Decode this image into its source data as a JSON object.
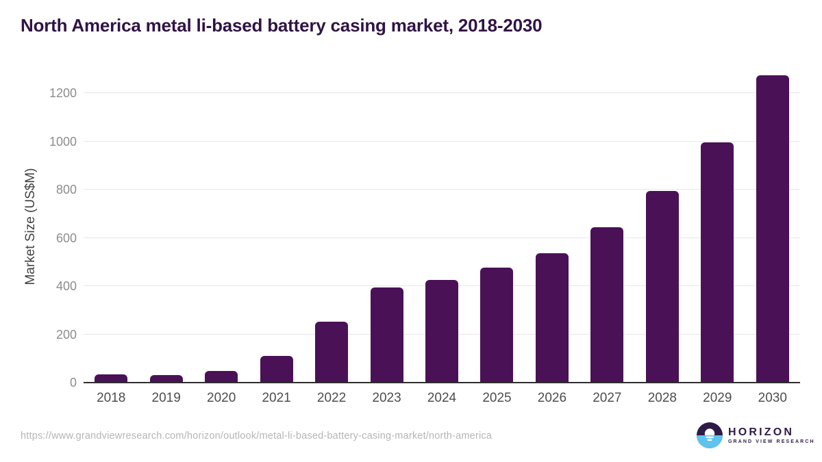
{
  "header": {
    "title": "North America metal li-based battery casing market, 2018-2030"
  },
  "chart_data": {
    "type": "bar",
    "title": "North America metal li-based battery casing market, 2018-2030",
    "categories": [
      "2018",
      "2019",
      "2020",
      "2021",
      "2022",
      "2023",
      "2024",
      "2025",
      "2026",
      "2027",
      "2028",
      "2029",
      "2030"
    ],
    "values": [
      33,
      31,
      48,
      112,
      253,
      393,
      425,
      477,
      535,
      645,
      795,
      997,
      1273
    ],
    "xlabel": "",
    "ylabel": "Market Size (US$M)",
    "ylim": [
      0,
      1300
    ],
    "yticks": [
      0,
      200,
      400,
      600,
      800,
      1000,
      1200
    ],
    "grid": true,
    "legend": "none",
    "bar_color": "#4a1157"
  },
  "footer": {
    "source_url": "https://www.grandviewresearch.com/horizon/outlook/metal-li-based-battery-casing-market/north-america",
    "logo": {
      "name": "HORIZON",
      "subtitle": "GRAND VIEW RESEARCH",
      "mark": "sunset-horizon-icon",
      "purple": "#2e1a47",
      "blue": "#5ec3ee"
    }
  },
  "colors": {
    "bar": "#4a1157",
    "title_text": "#301445",
    "axis_line": "#2e2e2e",
    "gridline": "#e6e6e6",
    "ytick_text": "#8c8c8c",
    "xtick_text": "#4d4d4d",
    "url_text": "#b5b5b5",
    "background": "#ffffff"
  }
}
